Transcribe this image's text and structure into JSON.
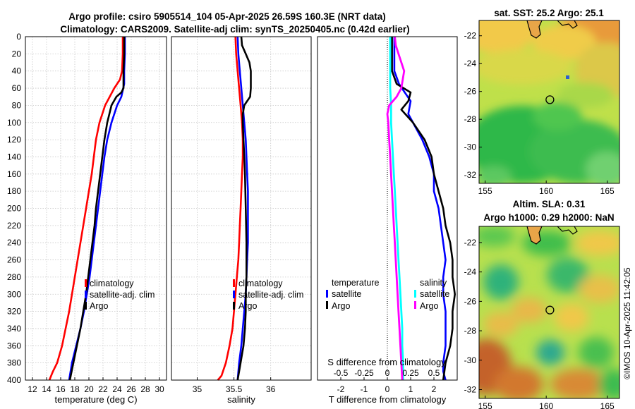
{
  "titles": {
    "main_line1": "Argo profile: csiro 5905514_104 05-Apr-2025 26.59S 160.3E (NRT data)",
    "main_line2": "Climatology: CARS2009. Satellite-adj clim: synTS_20250405.nc (0.42d earlier)",
    "sst_map": "sat. SST: 25.2 Argo: 25.1",
    "sla_line1": "Altim. SLA: 0.31",
    "sla_line2": "Argo h1000: 0.29 h2000: NaN",
    "stamp": "©IMOS 10-Apr-2025 11:42:05"
  },
  "colors": {
    "climatology": "#ff0000",
    "satellite": "#0000ff",
    "argo": "#000000",
    "s_satellite": "#00ffff",
    "s_argo": "#ff00ff",
    "grid": "#c8c8c8"
  },
  "chart_data": [
    {
      "type": "line",
      "id": "temperature",
      "xlabel": "temperature (deg C)",
      "ylabel": "",
      "xlim": [
        11,
        31
      ],
      "ylim": [
        400,
        0
      ],
      "xticks": [
        12,
        14,
        16,
        18,
        20,
        22,
        24,
        26,
        28,
        30
      ],
      "yticks": [
        0,
        20,
        40,
        60,
        80,
        100,
        120,
        140,
        160,
        180,
        200,
        220,
        240,
        260,
        280,
        300,
        320,
        340,
        360,
        380,
        400
      ],
      "grid": true,
      "legend": [
        "climatology",
        "satellite-adj. clim",
        "Argo"
      ],
      "series": [
        {
          "name": "climatology",
          "color": "#ff0000",
          "x": [
            24.8,
            24.8,
            24.7,
            24.4,
            23.6,
            22.3,
            21.5,
            21.0,
            20.7,
            20.4,
            20.0,
            19.6,
            19.2,
            18.8,
            18.4,
            18.0,
            17.6,
            17.2,
            16.7,
            16.2,
            15.5,
            14.9,
            14.4
          ],
          "y": [
            0,
            20,
            40,
            50,
            60,
            80,
            100,
            120,
            140,
            160,
            180,
            200,
            220,
            240,
            260,
            280,
            300,
            320,
            340,
            360,
            380,
            390,
            400
          ]
        },
        {
          "name": "satellite-adj. clim",
          "color": "#0000ff",
          "x": [
            25.1,
            25.1,
            25.0,
            25.0,
            24.6,
            24.0,
            23.2,
            22.6,
            22.2,
            21.9,
            21.6,
            21.3,
            21.0,
            20.7,
            20.4,
            20.1,
            19.7,
            19.3,
            18.8,
            18.2,
            17.6,
            17.2
          ],
          "y": [
            0,
            20,
            40,
            55,
            70,
            80,
            100,
            120,
            140,
            160,
            180,
            200,
            220,
            240,
            260,
            280,
            300,
            320,
            340,
            360,
            380,
            400
          ]
        },
        {
          "name": "Argo",
          "color": "#000000",
          "x": [
            25.0,
            25.0,
            24.9,
            24.9,
            24.6,
            23.9,
            23.2,
            22.6,
            22.2,
            21.9,
            21.6,
            21.3,
            21.0,
            20.8,
            20.5,
            20.2,
            19.9,
            19.6,
            19.2,
            18.8,
            18.3,
            17.8,
            17.3
          ],
          "y": [
            0,
            20,
            40,
            60,
            65,
            70,
            80,
            100,
            120,
            140,
            160,
            180,
            200,
            220,
            240,
            260,
            280,
            300,
            320,
            340,
            360,
            380,
            400
          ]
        }
      ]
    },
    {
      "type": "line",
      "id": "salinity",
      "xlabel": "salinity",
      "xlim": [
        34.65,
        36.55
      ],
      "ylim": [
        400,
        0
      ],
      "xticks": [
        35,
        35.5,
        36
      ],
      "grid": true,
      "legend": [
        "climatology",
        "satellite-adj. clim",
        "Argo"
      ],
      "series": [
        {
          "name": "climatology",
          "color": "#ff0000",
          "x": [
            35.52,
            35.53,
            35.55,
            35.57,
            35.59,
            35.61,
            35.62,
            35.62,
            35.61,
            35.6,
            35.59,
            35.58,
            35.57,
            35.56,
            35.54,
            35.52,
            35.5,
            35.48,
            35.44,
            35.39,
            35.33,
            35.28
          ],
          "y": [
            0,
            20,
            40,
            60,
            80,
            100,
            120,
            140,
            160,
            180,
            200,
            220,
            240,
            260,
            280,
            300,
            320,
            340,
            360,
            380,
            395,
            400
          ]
        },
        {
          "name": "satellite-adj. clim",
          "color": "#0000ff",
          "x": [
            35.55,
            35.56,
            35.58,
            35.6,
            35.62,
            35.64,
            35.66,
            35.67,
            35.68,
            35.69,
            35.69,
            35.69,
            35.69,
            35.68,
            35.67,
            35.66,
            35.64,
            35.62,
            35.6,
            35.57,
            35.55
          ],
          "y": [
            0,
            20,
            40,
            60,
            80,
            100,
            120,
            140,
            160,
            180,
            200,
            220,
            240,
            260,
            280,
            300,
            320,
            340,
            360,
            380,
            400
          ]
        },
        {
          "name": "Argo",
          "color": "#000000",
          "x": [
            35.6,
            35.61,
            35.66,
            35.71,
            35.73,
            35.73,
            35.72,
            35.64,
            35.62,
            35.62,
            35.63,
            35.64,
            35.65,
            35.66,
            35.67,
            35.67,
            35.66,
            35.66,
            35.65,
            35.63,
            35.61,
            35.59,
            35.57,
            35.55
          ],
          "y": [
            0,
            10,
            20,
            30,
            40,
            60,
            70,
            80,
            90,
            100,
            120,
            140,
            160,
            200,
            240,
            280,
            300,
            320,
            340,
            360,
            370,
            380,
            390,
            400
          ]
        }
      ]
    },
    {
      "type": "line",
      "id": "difference",
      "xlabel": "T difference from climatology",
      "xlabel_top": "S difference from climatology",
      "xlim": [
        -3,
        3
      ],
      "s_xlim": [
        -0.75,
        0.75
      ],
      "ylim": [
        400,
        0
      ],
      "xticks": [
        -2,
        -1,
        0,
        1,
        2
      ],
      "s_xticks": [
        -0.5,
        -0.25,
        0,
        0.25,
        0.5
      ],
      "s_xtick_labels": [
        "-0.5",
        "-0.25",
        "0",
        "0.25",
        "0.5"
      ],
      "zero_line": "dotted",
      "legend_t": [
        "temperature",
        "satellite",
        "Argo"
      ],
      "legend_s": [
        "salinity",
        "satellite",
        "Argo"
      ],
      "series": [
        {
          "name": "T satellite",
          "color": "#0000ff",
          "axis": "T",
          "x": [
            0.3,
            0.3,
            0.3,
            0.5,
            1.0,
            0.9,
            1.5,
            1.8,
            2.0,
            2.0,
            2.2,
            2.3,
            2.4,
            2.5,
            2.4,
            2.4,
            2.5,
            2.5,
            2.5,
            2.4,
            2.4,
            2.5
          ],
          "y": [
            0,
            20,
            40,
            55,
            75,
            90,
            120,
            140,
            160,
            180,
            200,
            220,
            240,
            260,
            280,
            300,
            320,
            340,
            360,
            380,
            390,
            400
          ]
        },
        {
          "name": "T Argo",
          "color": "#000000",
          "axis": "T",
          "x": [
            0.2,
            0.2,
            0.2,
            0.4,
            1.0,
            0.9,
            0.6,
            1.1,
            1.6,
            1.9,
            2.0,
            2.2,
            2.4,
            2.5,
            2.7,
            2.8,
            2.8,
            2.9,
            2.8,
            2.8,
            2.7,
            2.5,
            2.4
          ],
          "y": [
            0,
            20,
            40,
            55,
            65,
            75,
            85,
            100,
            120,
            140,
            160,
            180,
            200,
            220,
            240,
            260,
            280,
            300,
            320,
            340,
            360,
            380,
            400
          ]
        },
        {
          "name": "S satellite",
          "color": "#00ffff",
          "axis": "S",
          "x": [
            0.03,
            0.03,
            0.03,
            0.03,
            0.04,
            0.04,
            0.05,
            0.06,
            0.07,
            0.08,
            0.09,
            0.1,
            0.11,
            0.12,
            0.13,
            0.14,
            0.15,
            0.16,
            0.16,
            0.17,
            0.17
          ],
          "y": [
            0,
            20,
            40,
            60,
            80,
            100,
            120,
            140,
            160,
            180,
            200,
            220,
            240,
            260,
            280,
            300,
            320,
            340,
            360,
            380,
            400
          ]
        },
        {
          "name": "S Argo",
          "color": "#ff00ff",
          "axis": "S",
          "x": [
            0.08,
            0.09,
            0.12,
            0.18,
            0.15,
            0.1,
            0.02,
            0.0,
            0.01,
            0.02,
            0.03,
            0.04,
            0.05,
            0.06,
            0.07,
            0.08,
            0.09,
            0.1,
            0.11,
            0.12,
            0.13,
            0.14,
            0.15,
            0.16
          ],
          "y": [
            0,
            10,
            20,
            40,
            60,
            70,
            80,
            90,
            100,
            120,
            140,
            160,
            180,
            200,
            220,
            240,
            260,
            280,
            300,
            320,
            340,
            360,
            380,
            400
          ]
        }
      ]
    },
    {
      "type": "heatmap",
      "id": "sst_map",
      "title": "sat. SST: 25.2 Argo: 25.1",
      "xlim": [
        154.5,
        166.0
      ],
      "ylim": [
        -32.6,
        -20.9
      ],
      "xticks": [
        155,
        160,
        165
      ],
      "yticks": [
        -22,
        -24,
        -26,
        -28,
        -30,
        -32
      ],
      "argo_position": [
        160.3,
        -26.59
      ]
    },
    {
      "type": "heatmap",
      "id": "sla_map",
      "title": "Altim. SLA: 0.31 / Argo h1000: 0.29 h2000: NaN",
      "xlim": [
        154.5,
        166.0
      ],
      "ylim": [
        -32.6,
        -20.9
      ],
      "xticks": [
        155,
        160,
        165
      ],
      "yticks": [
        -22,
        -24,
        -26,
        -28,
        -30,
        -32
      ],
      "argo_position": [
        160.3,
        -26.59
      ]
    }
  ]
}
